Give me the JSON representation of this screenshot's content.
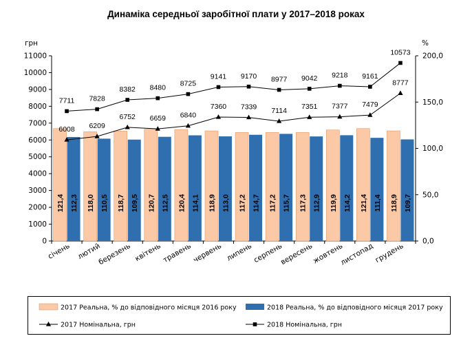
{
  "chart_data": {
    "type": "bar",
    "title": "Динаміка середньої заробітної плати у 2017–2018 роках",
    "ylabel_left": "грн",
    "ylabel_right": "%",
    "ylim_left": [
      0,
      11000
    ],
    "ylim_right": [
      0,
      200
    ],
    "yticks_left": [
      "0",
      "1000",
      "2000",
      "3000",
      "4000",
      "5000",
      "6000",
      "7000",
      "8000",
      "9000",
      "10000",
      "11000"
    ],
    "yticks_right": [
      "0,0",
      "50,0",
      "100,0",
      "150,0",
      "200,0"
    ],
    "categories": [
      "січень",
      "лютий",
      "березень",
      "квітень",
      "травень",
      "червень",
      "липень",
      "серпень",
      "вересень",
      "жовтень",
      "листопад",
      "грудень"
    ],
    "series": [
      {
        "name": "2017 Реальна, % до відповідного місяця 2016 року",
        "kind": "bar",
        "axis": "right",
        "color": "#fbc9a6",
        "values": [
          121.4,
          118.0,
          118.7,
          120.7,
          120.4,
          118.9,
          117.2,
          117.2,
          117.3,
          119.9,
          121.4,
          118.9
        ],
        "labels": [
          "121,4",
          "118,0",
          "118,7",
          "120,7",
          "120,4",
          "118,9",
          "117,2",
          "117,2",
          "117,3",
          "119,9",
          "121,4",
          "118,9"
        ]
      },
      {
        "name": "2018 Реальна, % до відповідного місяця 2017 року",
        "kind": "bar",
        "axis": "right",
        "color": "#2f6fb0",
        "values": [
          112.3,
          110.5,
          109.5,
          112.5,
          114.1,
          113.0,
          114.7,
          115.7,
          112.9,
          114.2,
          111.4,
          109.7
        ],
        "labels": [
          "112,3",
          "110,5",
          "109,5",
          "112,5",
          "114,1",
          "113,0",
          "114,7",
          "115,7",
          "112,9",
          "114,2",
          "111,4",
          "109,7"
        ]
      },
      {
        "name": "2017 Номінальна, грн",
        "kind": "line",
        "axis": "left",
        "marker": "triangle",
        "color": "#000000",
        "values": [
          6008,
          6209,
          6752,
          6659,
          6840,
          7360,
          7339,
          7114,
          7351,
          7377,
          7479,
          8777
        ],
        "labels": [
          "6008",
          "6209",
          "6752",
          "6659",
          "6840",
          "7360",
          "7339",
          "7114",
          "7351",
          "7377",
          "7479",
          "8777"
        ]
      },
      {
        "name": "2018 Номінальна, грн",
        "kind": "line",
        "axis": "left",
        "marker": "square",
        "color": "#000000",
        "values": [
          7711,
          7828,
          8382,
          8480,
          8725,
          9141,
          9170,
          8977,
          9042,
          9218,
          9161,
          10573
        ],
        "labels": [
          "7711",
          "7828",
          "8382",
          "8480",
          "8725",
          "9141",
          "9170",
          "8977",
          "9042",
          "9218",
          "9161",
          "10573"
        ]
      }
    ],
    "legend": "bottom"
  }
}
